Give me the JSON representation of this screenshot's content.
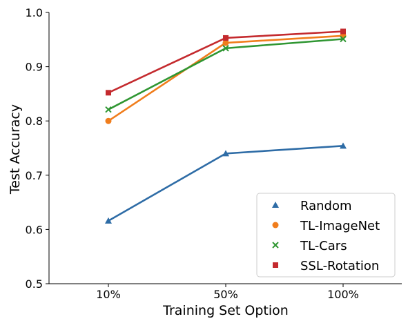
{
  "chart_data": {
    "type": "line",
    "title": "",
    "xlabel": "Training Set Option",
    "ylabel": "Test Accuracy",
    "categories": [
      "10%",
      "50%",
      "100%"
    ],
    "ylim": [
      0.5,
      1.0
    ],
    "yticks": [
      "0.5",
      "0.6",
      "0.7",
      "0.8",
      "0.9",
      "1.0"
    ],
    "grid": false,
    "legend_position": "lower-right",
    "series": [
      {
        "name": "Random",
        "marker": "triangle",
        "color": "#2e6ca6",
        "values": [
          0.616,
          0.74,
          0.754
        ]
      },
      {
        "name": "TL-ImageNet",
        "marker": "circle",
        "color": "#f07d1c",
        "values": [
          0.8,
          0.944,
          0.957
        ]
      },
      {
        "name": "TL-Cars",
        "marker": "x",
        "color": "#2f9632",
        "values": [
          0.821,
          0.934,
          0.951
        ]
      },
      {
        "name": "SSL-Rotation",
        "marker": "square",
        "color": "#c42a2e",
        "values": [
          0.852,
          0.953,
          0.965
        ]
      }
    ]
  }
}
